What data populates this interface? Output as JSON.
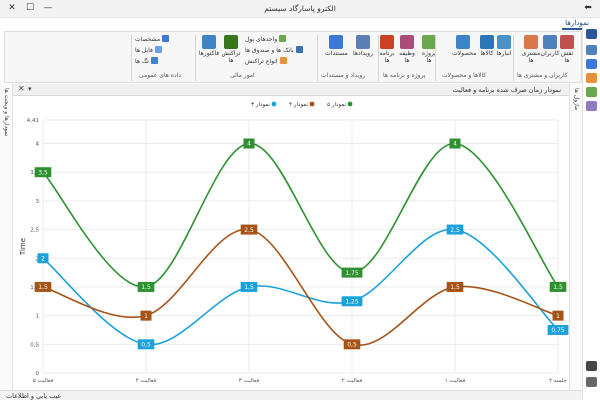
{
  "window": {
    "title": "الکترو پاسارگاد سیستم",
    "minimize_glyph": "—",
    "maximize_glyph": "☐",
    "close_glyph": "✕",
    "back_glyph": "⬅"
  },
  "tabs": {
    "active": "نمودارها"
  },
  "ribbon": {
    "items": [
      {
        "label": "نقش\nها",
        "icon": "roles-icon",
        "color": "#c0504d"
      },
      {
        "label": "کاربران",
        "icon": "users-icon",
        "color": "#4f81bd"
      },
      {
        "label": "مشتری\nها",
        "icon": "customers-icon",
        "color": "#d9774a"
      },
      {
        "label": "انبارها",
        "icon": "warehouse-icon",
        "color": "#4a90c8"
      },
      {
        "label": "کالاها",
        "icon": "goods-icon",
        "color": "#2e75b6"
      },
      {
        "label": "محصولات",
        "icon": "products-icon",
        "color": "#3d85c6"
      },
      {
        "label": "پروژه\nها",
        "icon": "projects-icon",
        "color": "#6aa84f"
      },
      {
        "label": "وظیفه\nها",
        "icon": "tasks-icon",
        "color": "#a64d79"
      },
      {
        "label": "برنامه\nها",
        "icon": "schedule-icon",
        "color": "#cc4125"
      },
      {
        "label": "رویدادها",
        "icon": "calendar-icon",
        "color": "#5b7fb5"
      },
      {
        "label": "مستندات",
        "icon": "documents-icon",
        "color": "#3c78d8"
      },
      {
        "label": "تراکنش\nها",
        "icon": "transactions-icon",
        "color": "#38761d"
      },
      {
        "label": "فاکتورها",
        "icon": "invoices-icon",
        "color": "#3d85c6"
      }
    ],
    "small_items": [
      {
        "label": "واحدهای پول",
        "icon": "currency-icon",
        "color": "#6aa84f"
      },
      {
        "label": "بانک ها و صندوق ها",
        "icon": "bank-icon",
        "color": "#3d6fb5"
      },
      {
        "label": "انواع تراکنش",
        "icon": "transaction-type-icon",
        "color": "#e69138"
      },
      {
        "label": "مشخصات",
        "icon": "properties-icon",
        "color": "#3c78d8"
      },
      {
        "label": "فایل ها",
        "icon": "files-icon",
        "color": "#6d9eeb"
      },
      {
        "label": "تگ ها",
        "icon": "tags-icon",
        "color": "#3d85c6"
      }
    ],
    "groups": [
      "کاربران و مشتری ها",
      "کالاها و محصولات",
      "پروژه و برنامه ها",
      "رویداد و مستندات",
      "امور مالی",
      "داده های عمومی"
    ]
  },
  "document": {
    "title": "نمودار زمان صرف شده برنامه و فعالیت",
    "close_glyph": "✕",
    "menu_glyph": "▾"
  },
  "left_panel": {
    "label": "نمودارها و ویجت ها"
  },
  "right_panel": {
    "label": "ماژول ها"
  },
  "status": {
    "text": "عیب یابی و اطلاعات"
  },
  "colors": {
    "series_blue": "#1ca1dc",
    "series_brown": "#a65317",
    "series_green": "#2e9130",
    "grid": "#ebebeb",
    "axis_text": "#555555"
  },
  "chart_data": {
    "type": "line",
    "ylabel": "Time",
    "ylim": [
      0,
      4.41
    ],
    "y_ticks": [
      "0",
      "0,5",
      "1",
      "1,5",
      "2",
      "2,5",
      "3",
      "3,5",
      "4",
      "4,41"
    ],
    "categories": [
      "فعالیت ۵",
      "فعالیت ۴",
      "فعالیت ۳",
      "فعالیت ۲",
      "فعالیت ۱",
      "جلسه ۲"
    ],
    "legend_position": "top",
    "series": [
      {
        "name": "نمودار ۳",
        "color": "#1ca1dc",
        "values": [
          2,
          0.5,
          1.5,
          1.25,
          2.5,
          0.75
        ],
        "labels": [
          "2",
          "0,5",
          "1,5",
          "1,25",
          "2,5",
          "0,75"
        ]
      },
      {
        "name": "نمودار ۴",
        "color": "#a65317",
        "values": [
          1.5,
          1,
          2.5,
          0.5,
          1.5,
          1
        ],
        "labels": [
          "1,5",
          "1",
          "2,5",
          "0,5",
          "1,5",
          "1"
        ]
      },
      {
        "name": "نمودار ۵",
        "color": "#2e9130",
        "values": [
          3.5,
          1.5,
          4,
          1.75,
          4,
          1.5
        ],
        "labels": [
          "3,5",
          "1,5",
          "4",
          "1,75",
          "4",
          "1,5"
        ]
      }
    ]
  }
}
